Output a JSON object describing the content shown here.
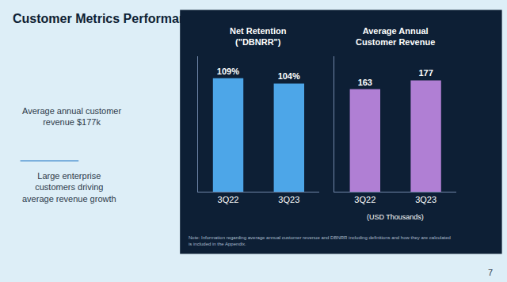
{
  "title": "Customer Metrics Performance",
  "annotations": [
    "Average annual customer\nrevenue $177k",
    "Large enterprise\ncustomers driving\naverage revenue growth",
    "Note: Information regarding average annual customer revenue and DBNRR including definitions and how they are calculated\nis included in the Appendix.",
    "7"
  ],
  "chart_data": [
    {
      "type": "bar",
      "title": "Net Retention\n(\"DBNRR\")",
      "categories": [
        "3Q22",
        "3Q23"
      ],
      "values": [
        109,
        104
      ],
      "value_labels": [
        "109%",
        "104%"
      ],
      "color": "#4da6e8",
      "ylim": [
        0,
        130
      ],
      "yticks": [],
      "tick_labels": "x",
      "data_labels": true,
      "grid": false
    },
    {
      "type": "bar",
      "title": "Average Annual\nCustomer Revenue",
      "xlabel": "(USD Thousands)",
      "categories": [
        "3Q22",
        "3Q23"
      ],
      "values": [
        163,
        177
      ],
      "color": "#b07fd4",
      "ylim": [
        0,
        215
      ],
      "yticks": [],
      "tick_labels": "x",
      "data_labels": true,
      "grid": false
    }
  ]
}
